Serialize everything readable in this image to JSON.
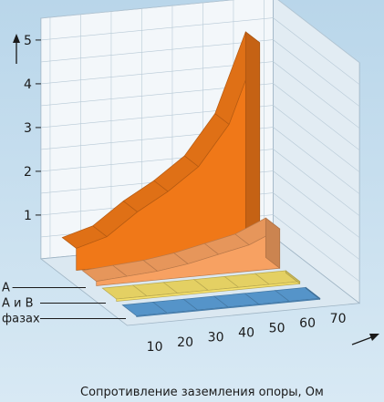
{
  "chart_data": {
    "type": "area",
    "xlabel": "Сопротивление заземления опоры, Ом",
    "categories": [
      10,
      20,
      30,
      40,
      50,
      60,
      70
    ],
    "x_ticks": [
      "10",
      "20",
      "30",
      "40",
      "50",
      "60",
      "70"
    ],
    "y_ticks": [
      "1",
      "2",
      "3",
      "4",
      "5"
    ],
    "ylim": [
      0,
      5.5
    ],
    "grid": true,
    "series": [
      {
        "name": "",
        "color": "#f07818",
        "values": [
          0.5,
          0.7,
          1.2,
          1.6,
          2.1,
          3.0,
          4.8
        ]
      },
      {
        "name": "A",
        "color": "#f7a162",
        "values": [
          0.1,
          0.15,
          0.2,
          0.3,
          0.45,
          0.6,
          0.9
        ]
      },
      {
        "name": "A и B",
        "color": "#f5e06a",
        "values": [
          0.05,
          0.05,
          0.05,
          0.05,
          0.05,
          0.05,
          0.05
        ]
      },
      {
        "name": "фазах",
        "color": "#5b9fd8",
        "values": [
          0.02,
          0.02,
          0.02,
          0.02,
          0.02,
          0.02,
          0.02
        ]
      }
    ]
  }
}
